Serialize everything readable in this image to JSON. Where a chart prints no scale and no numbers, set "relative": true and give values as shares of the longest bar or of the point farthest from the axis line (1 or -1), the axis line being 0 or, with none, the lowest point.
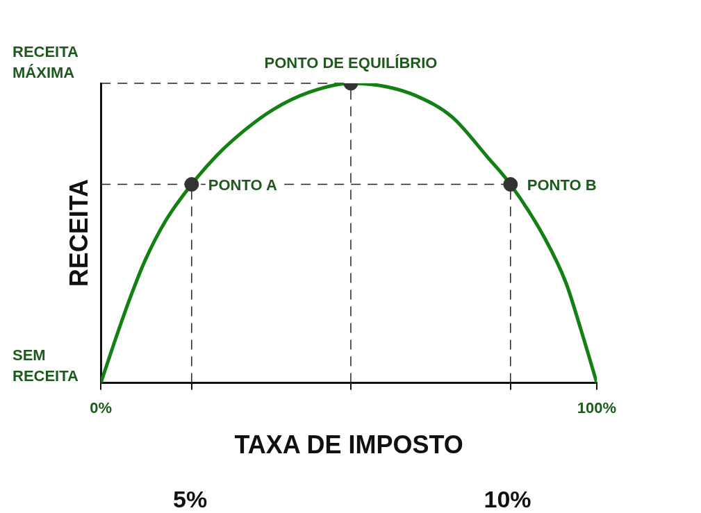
{
  "chart_data": {
    "type": "line",
    "xlabel": "TAXA DE IMPOSTO",
    "ylabel": "RECEITA",
    "relative": true,
    "grid": false,
    "legend": false,
    "xlim": [
      0,
      100
    ],
    "xticks": [
      {
        "value": 0,
        "label": "0%"
      },
      {
        "value": 18.3,
        "label": null
      },
      {
        "value": 50.4,
        "label": null
      },
      {
        "value": 82.6,
        "label": null
      },
      {
        "value": 100,
        "label": "100%"
      }
    ],
    "series": [
      {
        "type": "line",
        "color": "#138013",
        "marker": "none",
        "x": [
          0,
          3.2,
          6.0,
          8.9,
          13.2,
          18.3,
          23.3,
          29.1,
          34.8,
          42.0,
          50.4,
          57.8,
          63.6,
          70.8,
          78.0,
          82.6,
          89.5,
          93.8,
          96.7,
          100
        ],
        "values": [
          0,
          0.158,
          0.288,
          0.408,
          0.545,
          0.6625,
          0.758,
          0.845,
          0.913,
          0.97,
          1,
          0.988,
          0.958,
          0.888,
          0.753,
          0.6625,
          0.483,
          0.333,
          0.183,
          0
        ]
      },
      {
        "type": "scatter",
        "color": "#333333",
        "marker": "circle",
        "x": [
          18.3,
          50.4,
          82.6
        ],
        "values": [
          0.6625,
          1,
          0.6625
        ]
      }
    ],
    "ref_lines": [
      {
        "axis": "y",
        "value": 1,
        "label": "RECEITA MÁXIMA",
        "line_style": "dashed",
        "color": "#222222"
      },
      {
        "axis": "y",
        "value": 0.6625,
        "line_style": "dashed",
        "color": "#222222"
      },
      {
        "axis": "x",
        "value": 18.3,
        "line_style": "dashed",
        "color": "#222222"
      },
      {
        "axis": "x",
        "value": 50.4,
        "line_style": "dashed",
        "color": "#222222"
      },
      {
        "axis": "x",
        "value": 82.6,
        "line_style": "dashed",
        "color": "#222222"
      }
    ],
    "annotations": [
      {
        "text": "SEM RECEITA",
        "x": 0,
        "y": 0
      },
      {
        "text": "PONTO A",
        "x": 18.3,
        "y": 0.6625
      },
      {
        "text": "PONTO DE EQUILÍBRIO",
        "x": 50.4,
        "y": 1
      },
      {
        "text": "PONTO B",
        "x": 82.6,
        "y": 0.6625
      },
      "5%",
      "10%"
    ]
  }
}
